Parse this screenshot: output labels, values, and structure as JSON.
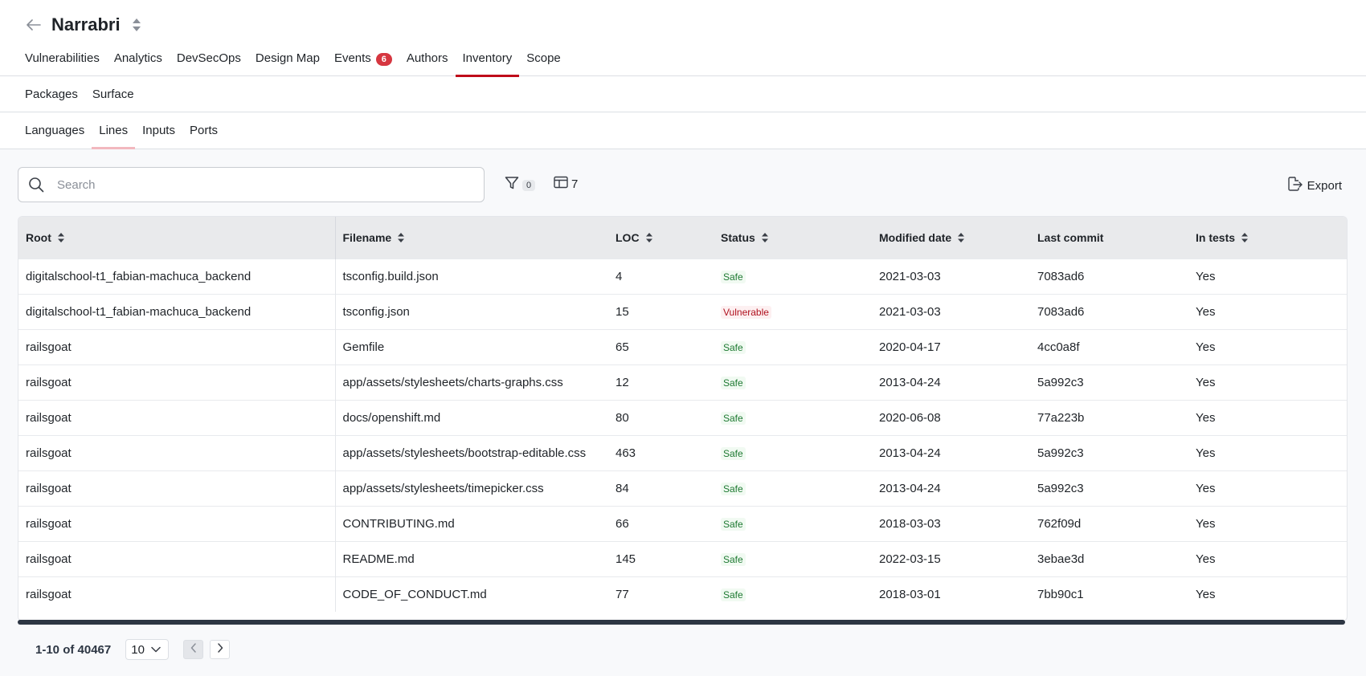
{
  "header": {
    "title": "Narrabri",
    "icons": {
      "back": "arrow-left-icon",
      "switcher": "sort-switch-icon"
    }
  },
  "main_tabs": [
    {
      "label": "Vulnerabilities"
    },
    {
      "label": "Analytics"
    },
    {
      "label": "DevSecOps"
    },
    {
      "label": "Design Map"
    },
    {
      "label": "Events",
      "badge": "6"
    },
    {
      "label": "Authors"
    },
    {
      "label": "Inventory",
      "active": true
    },
    {
      "label": "Scope"
    }
  ],
  "sub_tabs": [
    {
      "label": "Packages"
    },
    {
      "label": "Surface"
    }
  ],
  "inner_tabs": [
    {
      "label": "Languages"
    },
    {
      "label": "Lines",
      "active": true
    },
    {
      "label": "Inputs"
    },
    {
      "label": "Ports"
    }
  ],
  "toolbar": {
    "search_placeholder": "Search",
    "search_value": "",
    "filter_count": "0",
    "columns_count": "7",
    "export_label": "Export"
  },
  "table": {
    "columns": [
      "Root",
      "Filename",
      "LOC",
      "Status",
      "Modified date",
      "Last commit",
      "In tests"
    ],
    "rows": [
      {
        "root": "digitalschool-t1_fabian-machuca_backend",
        "filename": "tsconfig.build.json",
        "loc": "4",
        "status": "Safe",
        "modified": "2021-03-03",
        "commit": "7083ad6",
        "in_tests": "Yes"
      },
      {
        "root": "digitalschool-t1_fabian-machuca_backend",
        "filename": "tsconfig.json",
        "loc": "15",
        "status": "Vulnerable",
        "modified": "2021-03-03",
        "commit": "7083ad6",
        "in_tests": "Yes"
      },
      {
        "root": "railsgoat",
        "filename": "Gemfile",
        "loc": "65",
        "status": "Safe",
        "modified": "2020-04-17",
        "commit": "4cc0a8f",
        "in_tests": "Yes"
      },
      {
        "root": "railsgoat",
        "filename": "app/assets/stylesheets/charts-graphs.css",
        "loc": "12",
        "status": "Safe",
        "modified": "2013-04-24",
        "commit": "5a992c3",
        "in_tests": "Yes"
      },
      {
        "root": "railsgoat",
        "filename": "docs/openshift.md",
        "loc": "80",
        "status": "Safe",
        "modified": "2020-06-08",
        "commit": "77a223b",
        "in_tests": "Yes"
      },
      {
        "root": "railsgoat",
        "filename": "app/assets/stylesheets/bootstrap-editable.css",
        "loc": "463",
        "status": "Safe",
        "modified": "2013-04-24",
        "commit": "5a992c3",
        "in_tests": "Yes"
      },
      {
        "root": "railsgoat",
        "filename": "app/assets/stylesheets/timepicker.css",
        "loc": "84",
        "status": "Safe",
        "modified": "2013-04-24",
        "commit": "5a992c3",
        "in_tests": "Yes"
      },
      {
        "root": "railsgoat",
        "filename": "CONTRIBUTING.md",
        "loc": "66",
        "status": "Safe",
        "modified": "2018-03-03",
        "commit": "762f09d",
        "in_tests": "Yes"
      },
      {
        "root": "railsgoat",
        "filename": "README.md",
        "loc": "145",
        "status": "Safe",
        "modified": "2022-03-15",
        "commit": "3ebae3d",
        "in_tests": "Yes"
      },
      {
        "root": "railsgoat",
        "filename": "CODE_OF_CONDUCT.md",
        "loc": "77",
        "status": "Safe",
        "modified": "2018-03-01",
        "commit": "7bb90c1",
        "in_tests": "Yes"
      }
    ]
  },
  "pagination": {
    "range_text": "1-10 of 40467",
    "page_size": "10"
  },
  "colors": {
    "accent": "#bf0b1a",
    "badge": "#d63640",
    "safe": "#1e7a32",
    "vulnerable": "#b0111f"
  }
}
